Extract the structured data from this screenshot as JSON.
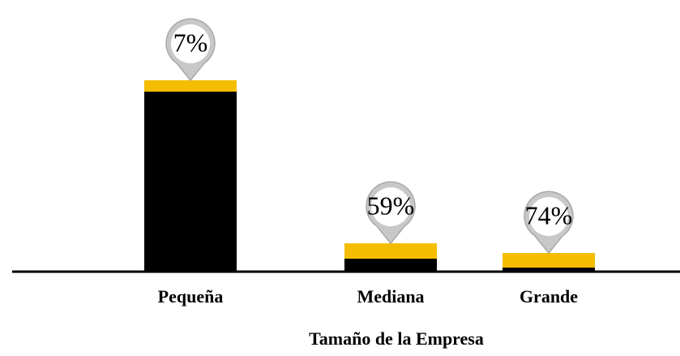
{
  "chart_data": {
    "type": "stacked_bar",
    "x_label": "Tamaño de la Empresa",
    "categories": [
      "Pequeña",
      "Mediana",
      "Grande"
    ],
    "series": [
      {
        "name": null,
        "color": "#000000",
        "values": [
          221,
          15,
          4
        ]
      },
      {
        "name": null,
        "color": "#f5bd00",
        "values": [
          14,
          19,
          18
        ]
      }
    ],
    "percentages": [
      7,
      59,
      74
    ],
    "percentage_labels": [
      "7%",
      "59%",
      "74%"
    ],
    "ylim": [
      0,
      240
    ]
  }
}
